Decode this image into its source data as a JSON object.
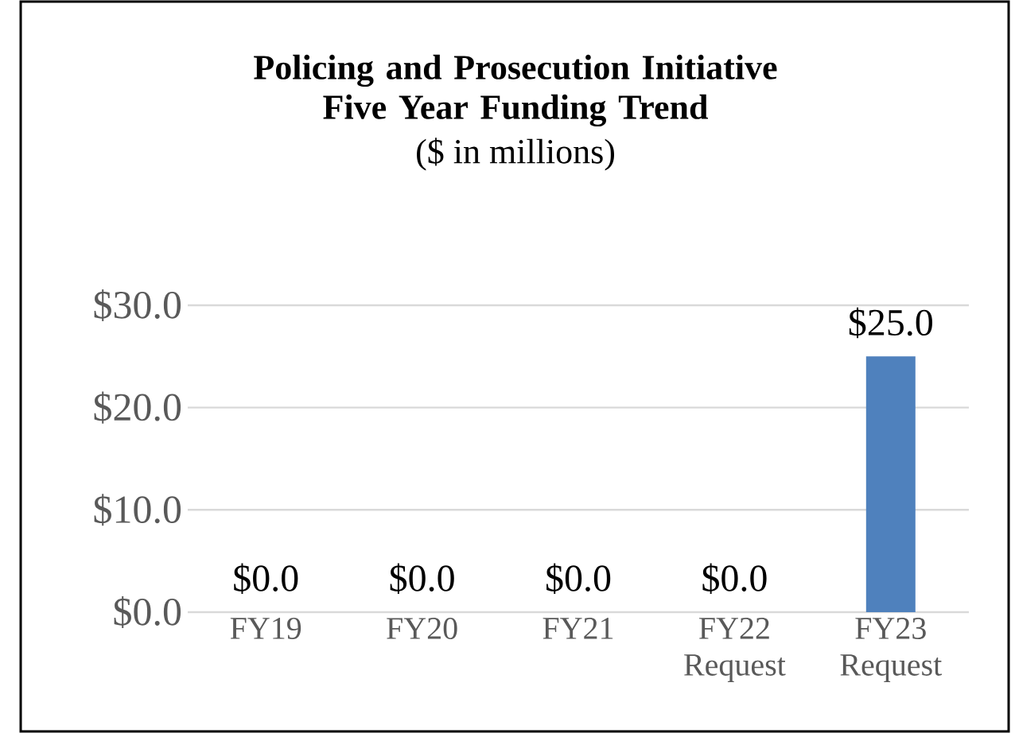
{
  "chart_data": {
    "type": "bar",
    "title": "Policing and Prosecution Initiative Five Year Funding Trend",
    "subtitle": "($ in millions)",
    "categories": [
      "FY19",
      "FY20",
      "FY21",
      "FY22 Request",
      "FY23 Request"
    ],
    "values": [
      0,
      0,
      0,
      0,
      25
    ],
    "value_labels": [
      "$0.0",
      "$0.0",
      "$0.0",
      "$0.0",
      "$25.0"
    ],
    "color": "#4f81bd",
    "ylim": [
      0,
      30
    ],
    "yticks": [
      {
        "value": 0,
        "label": "$0.0"
      },
      {
        "value": 10,
        "label": "$10.0"
      },
      {
        "value": 20,
        "label": "$20.0"
      },
      {
        "value": 30,
        "label": "$30.0"
      }
    ],
    "grid": "y"
  }
}
